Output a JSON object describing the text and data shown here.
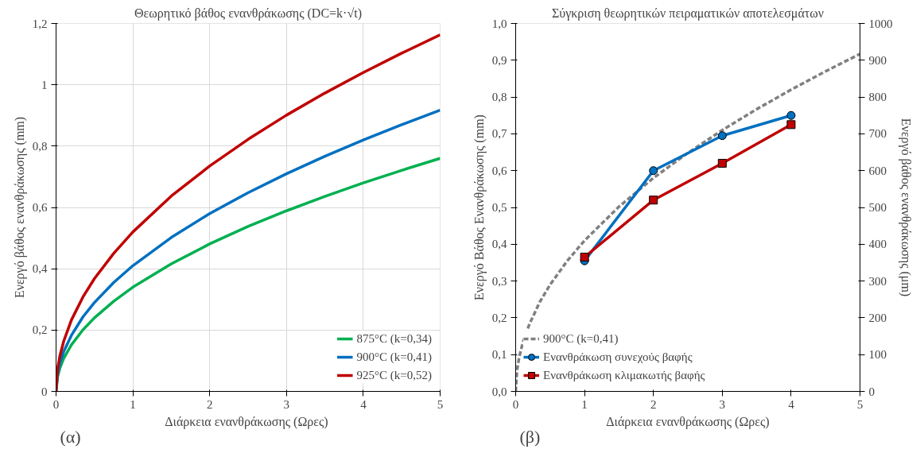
{
  "chart_data": [
    {
      "type": "line",
      "title": "Θεωρητικό βάθος ενανθράκωσης (DC=k·√t)",
      "xlabel": "Διάρκεια ενανθράκωσης  (Ωρες)",
      "ylabel": "Ενεργό βάθος ενανθράκωσης (mm)",
      "x": [
        0,
        0.02,
        0.05,
        0.1,
        0.2,
        0.35,
        0.5,
        0.75,
        1,
        1.5,
        2,
        2.5,
        3,
        3.5,
        4,
        4.5,
        5
      ],
      "series": [
        {
          "name": "875°C (k=0,34)",
          "color": "#00b050",
          "values": [
            0,
            0.048,
            0.076,
            0.108,
            0.152,
            0.201,
            0.24,
            0.294,
            0.34,
            0.416,
            0.481,
            0.538,
            0.589,
            0.636,
            0.68,
            0.721,
            0.76
          ]
        },
        {
          "name": "900°C (k=0,41)",
          "color": "#0070c0",
          "values": [
            0,
            0.058,
            0.092,
            0.13,
            0.183,
            0.243,
            0.29,
            0.355,
            0.41,
            0.502,
            0.58,
            0.648,
            0.71,
            0.767,
            0.82,
            0.87,
            0.917
          ]
        },
        {
          "name": "925°C (k=0,52)",
          "color": "#c00000",
          "values": [
            0,
            0.074,
            0.116,
            0.164,
            0.233,
            0.308,
            0.368,
            0.45,
            0.52,
            0.637,
            0.735,
            0.822,
            0.901,
            0.973,
            1.04,
            1.103,
            1.163
          ]
        }
      ],
      "xlim": [
        0,
        5
      ],
      "xticks": [
        0,
        1,
        2,
        3,
        4,
        5
      ],
      "ylim": [
        0,
        1.2
      ],
      "yticks": [
        0,
        {
          "value": 0.2,
          "label": "0,2"
        },
        {
          "value": 0.4,
          "label": "0,4"
        },
        {
          "value": 0.6,
          "label": "0,6"
        },
        {
          "value": 0.8,
          "label": "0,8"
        },
        1,
        {
          "value": 1.2,
          "label": "1,2"
        }
      ],
      "grid": true,
      "legend": "bottom right",
      "annotations": [
        "(α)"
      ]
    },
    {
      "type": "line",
      "title": "Σύγκριση θεωρητικών πειραματικών αποτελεσμάτων",
      "xlabel": "Διάρκεια ενανθράκωσης (Ωρες)",
      "ylabel": "Ενεργό Βάθος Ενανθράκωσης (mm)",
      "y2label": "Ενεργό βάθος ενανθράκωσης (μm)",
      "series": [
        {
          "name": "900°C (k=0,41)",
          "color": "#808080",
          "line_style": "dashed",
          "marker": "none",
          "x": [
            0,
            0.02,
            0.05,
            0.1,
            0.2,
            0.35,
            0.5,
            0.75,
            1,
            1.5,
            2,
            2.5,
            3,
            3.5,
            4,
            4.5,
            5
          ],
          "values": [
            0,
            0.058,
            0.092,
            0.13,
            0.183,
            0.243,
            0.29,
            0.355,
            0.41,
            0.502,
            0.58,
            0.648,
            0.71,
            0.767,
            0.82,
            0.87,
            0.917
          ]
        },
        {
          "name": "Ενανθράκωση συνεχούς βαφής",
          "color": "#0070c0",
          "line_style": "solid",
          "marker": "circle",
          "x": [
            1,
            2,
            3,
            4
          ],
          "values": [
            0.355,
            0.6,
            0.695,
            0.75
          ]
        },
        {
          "name": "Ενανθράκωση κλιμακωτής βαφής",
          "color": "#c00000",
          "line_style": "solid",
          "marker": "square",
          "x": [
            1,
            2,
            3,
            4
          ],
          "values": [
            0.365,
            0.52,
            0.62,
            0.725
          ]
        }
      ],
      "xlim": [
        0,
        5
      ],
      "xticks": [
        0,
        1,
        2,
        3,
        4,
        5
      ],
      "ylim": [
        0,
        1
      ],
      "yticks": [
        {
          "value": 0,
          "label": "0,0"
        },
        {
          "value": 0.1,
          "label": "0,1"
        },
        {
          "value": 0.2,
          "label": "0,2"
        },
        {
          "value": 0.3,
          "label": "0,3"
        },
        {
          "value": 0.4,
          "label": "0,4"
        },
        {
          "value": 0.5,
          "label": "0,5"
        },
        {
          "value": 0.6,
          "label": "0,6"
        },
        {
          "value": 0.7,
          "label": "0,7"
        },
        {
          "value": 0.8,
          "label": "0,8"
        },
        {
          "value": 0.9,
          "label": "0,9"
        },
        {
          "value": 1,
          "label": "1,0"
        }
      ],
      "y2lim": [
        0,
        1000
      ],
      "y2ticks": [
        0,
        100,
        200,
        300,
        400,
        500,
        600,
        700,
        800,
        900,
        1000
      ],
      "grid": false,
      "legend": "bottom left",
      "annotations": [
        "(β)"
      ]
    }
  ]
}
